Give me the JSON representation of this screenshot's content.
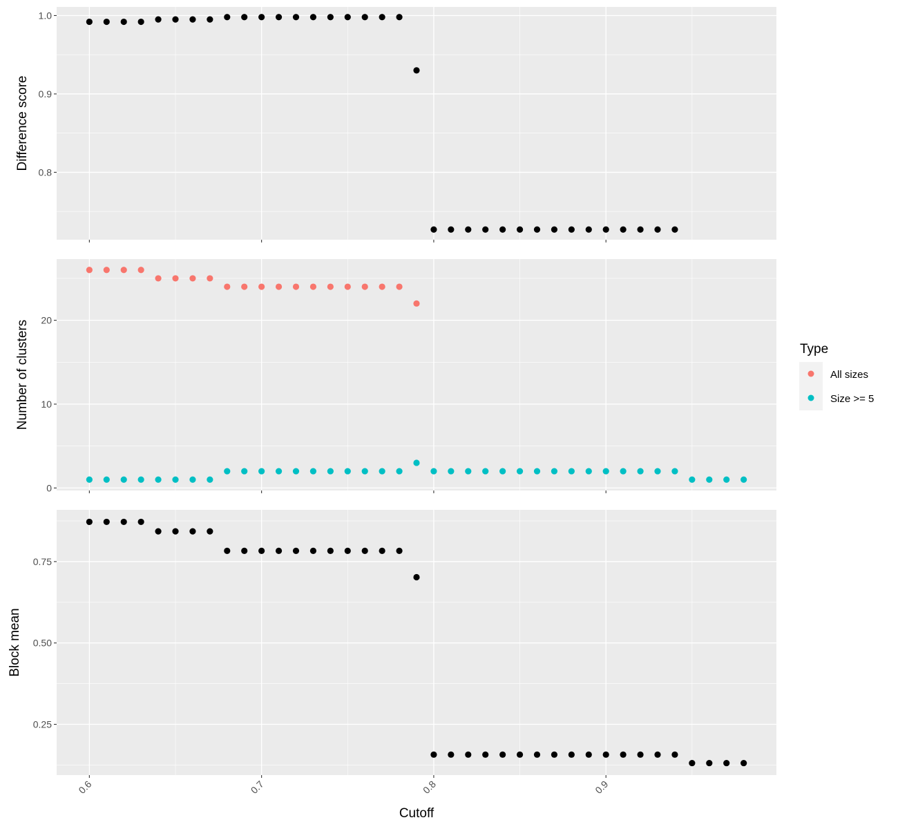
{
  "chart_data": {
    "type": "scatter",
    "xlabel": "Cutoff",
    "x_ticks": [
      0.6,
      0.7,
      0.8,
      0.9
    ],
    "x_range": [
      0.581,
      0.999
    ],
    "x": [
      0.6,
      0.61,
      0.62,
      0.63,
      0.64,
      0.65,
      0.66,
      0.67,
      0.68,
      0.69,
      0.7,
      0.71,
      0.72,
      0.73,
      0.74,
      0.75,
      0.76,
      0.77,
      0.78,
      0.79,
      0.8,
      0.81,
      0.82,
      0.83,
      0.84,
      0.85,
      0.86,
      0.87,
      0.88,
      0.89,
      0.9,
      0.91,
      0.92,
      0.93,
      0.94,
      0.95,
      0.96,
      0.97,
      0.98
    ],
    "panel_background": "#EBEBEB",
    "grid": true,
    "legend": {
      "title": "Type",
      "position": "right",
      "entries": [
        {
          "label": "All sizes",
          "color": "#F8766D"
        },
        {
          "label": "Size >= 5",
          "color": "#00BFC4"
        }
      ]
    },
    "panels": [
      {
        "ylabel": "Difference score",
        "ylim": [
          0.714,
          1.011
        ],
        "y_ticks": [
          0.8,
          0.9,
          1.0
        ],
        "y_tick_labels": [
          "0.8",
          "0.9",
          "1.0"
        ],
        "series": [
          {
            "color": "#000000",
            "x": [
              0.6,
              0.61,
              0.62,
              0.63,
              0.64,
              0.65,
              0.66,
              0.67,
              0.68,
              0.69,
              0.7,
              0.71,
              0.72,
              0.73,
              0.74,
              0.75,
              0.76,
              0.77,
              0.78,
              0.79,
              0.8,
              0.81,
              0.82,
              0.83,
              0.84,
              0.85,
              0.86,
              0.87,
              0.88,
              0.89,
              0.9,
              0.91,
              0.92,
              0.93,
              0.94
            ],
            "y": [
              0.992,
              0.992,
              0.992,
              0.992,
              0.995,
              0.995,
              0.995,
              0.995,
              0.998,
              0.998,
              0.998,
              0.998,
              0.998,
              0.998,
              0.998,
              0.998,
              0.998,
              0.998,
              0.998,
              0.93,
              0.727,
              0.727,
              0.727,
              0.727,
              0.727,
              0.727,
              0.727,
              0.727,
              0.727,
              0.727,
              0.727,
              0.727,
              0.727,
              0.727,
              0.727
            ]
          }
        ]
      },
      {
        "ylabel": "Number of clusters",
        "ylim": [
          -0.3,
          27.3
        ],
        "y_ticks": [
          0,
          10,
          20
        ],
        "y_tick_labels": [
          "0",
          "10",
          "20"
        ],
        "series": [
          {
            "name": "All sizes",
            "color": "#F8766D",
            "x": [
              0.6,
              0.61,
              0.62,
              0.63,
              0.64,
              0.65,
              0.66,
              0.67,
              0.68,
              0.69,
              0.7,
              0.71,
              0.72,
              0.73,
              0.74,
              0.75,
              0.76,
              0.77,
              0.78,
              0.79
            ],
            "y": [
              26,
              26,
              26,
              26,
              25,
              25,
              25,
              25,
              24,
              24,
              24,
              24,
              24,
              24,
              24,
              24,
              24,
              24,
              24,
              22
            ]
          },
          {
            "name": "Size >= 5",
            "color": "#00BFC4",
            "x": [
              0.6,
              0.61,
              0.62,
              0.63,
              0.64,
              0.65,
              0.66,
              0.67,
              0.68,
              0.69,
              0.7,
              0.71,
              0.72,
              0.73,
              0.74,
              0.75,
              0.76,
              0.77,
              0.78,
              0.79,
              0.8,
              0.81,
              0.82,
              0.83,
              0.84,
              0.85,
              0.86,
              0.87,
              0.88,
              0.89,
              0.9,
              0.91,
              0.92,
              0.93,
              0.94,
              0.95,
              0.96,
              0.97,
              0.98
            ],
            "y": [
              1,
              1,
              1,
              1,
              1,
              1,
              1,
              1,
              2,
              2,
              2,
              2,
              2,
              2,
              2,
              2,
              2,
              2,
              2,
              3,
              2,
              2,
              2,
              2,
              2,
              2,
              2,
              2,
              2,
              2,
              2,
              2,
              2,
              2,
              2,
              1,
              1,
              1,
              1
            ]
          }
        ]
      },
      {
        "ylabel": "Block mean",
        "ylim": [
          0.094,
          0.909
        ],
        "y_ticks": [
          0.25,
          0.5,
          0.75
        ],
        "y_tick_labels": [
          "0.25",
          "0.50",
          "0.75"
        ],
        "series": [
          {
            "color": "#000000",
            "x": [
              0.6,
              0.61,
              0.62,
              0.63,
              0.64,
              0.65,
              0.66,
              0.67,
              0.68,
              0.69,
              0.7,
              0.71,
              0.72,
              0.73,
              0.74,
              0.75,
              0.76,
              0.77,
              0.78,
              0.79,
              0.8,
              0.81,
              0.82,
              0.83,
              0.84,
              0.85,
              0.86,
              0.87,
              0.88,
              0.89,
              0.9,
              0.91,
              0.92,
              0.93,
              0.94,
              0.95,
              0.96,
              0.97,
              0.98
            ],
            "y": [
              0.872,
              0.872,
              0.872,
              0.872,
              0.843,
              0.843,
              0.843,
              0.843,
              0.783,
              0.783,
              0.783,
              0.783,
              0.783,
              0.783,
              0.783,
              0.783,
              0.783,
              0.783,
              0.783,
              0.702,
              0.157,
              0.157,
              0.157,
              0.157,
              0.157,
              0.157,
              0.157,
              0.157,
              0.157,
              0.157,
              0.157,
              0.157,
              0.157,
              0.157,
              0.157,
              0.131,
              0.131,
              0.131,
              0.131
            ]
          }
        ]
      }
    ]
  }
}
